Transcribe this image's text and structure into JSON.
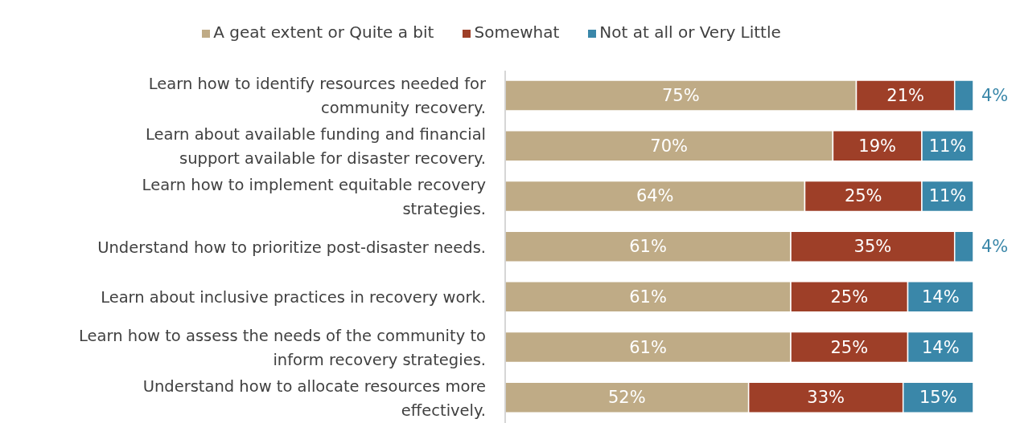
{
  "chart_data": {
    "type": "bar",
    "orientation": "horizontal",
    "stacked": true,
    "legend": "top",
    "xlim": [
      0,
      100
    ],
    "tick_labels": "y",
    "categories": [
      "Learn how to identify resources needed for community recovery.",
      "Learn about available funding and financial support available for disaster recovery.",
      "Learn how to implement equitable recovery strategies.",
      "Understand how to prioritize post-disaster needs.",
      "Learn about inclusive practices in recovery work.",
      "Learn how to assess the needs of the community to inform recovery strategies.",
      "Understand how to allocate resources more effectively."
    ],
    "series": [
      {
        "name": "A geat extent or Quite a bit",
        "color": "#bfab86",
        "values": [
          75,
          70,
          64,
          61,
          61,
          61,
          52
        ],
        "value_labels": [
          "75%",
          "70%",
          "64%",
          "61%",
          "61%",
          "61%",
          "52%"
        ]
      },
      {
        "name": "Somewhat",
        "color": "#9e3f28",
        "values": [
          21,
          19,
          25,
          35,
          25,
          25,
          33
        ],
        "value_labels": [
          "21%",
          "19%",
          "25%",
          "35%",
          "25%",
          "25%",
          "33%"
        ]
      },
      {
        "name": "Not at all or Very Little",
        "color": "#3a87a9",
        "values": [
          4,
          11,
          11,
          4,
          14,
          14,
          15
        ],
        "value_labels": [
          "4%",
          "11%",
          "11%",
          "4%",
          "14%",
          "14%",
          "15%"
        ]
      }
    ]
  }
}
